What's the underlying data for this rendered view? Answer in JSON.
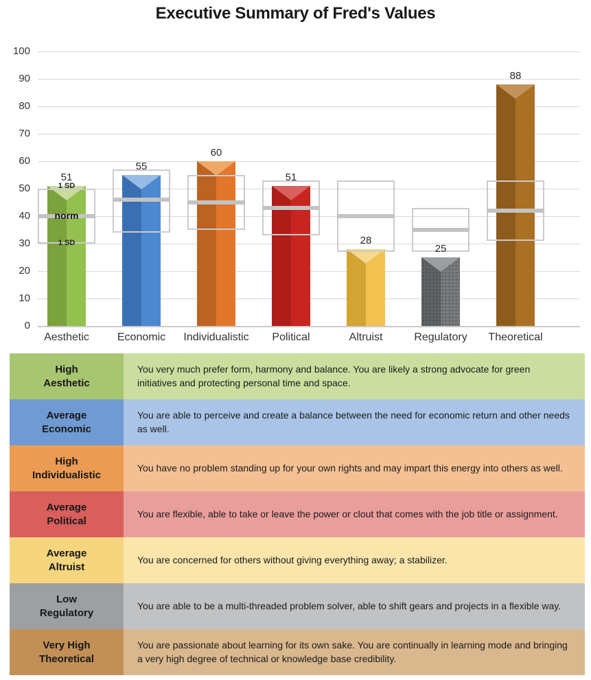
{
  "chart_data": {
    "type": "bar",
    "title": "Executive Summary of Fred's Values",
    "xlabel": "",
    "ylabel": "",
    "ylim": [
      0,
      100
    ],
    "grid": true,
    "yticks": [
      0,
      10,
      20,
      30,
      40,
      50,
      60,
      70,
      80,
      90,
      100
    ],
    "categories": [
      "Aesthetic",
      "Economic",
      "Individualistic",
      "Political",
      "Altruist",
      "Regulatory",
      "Theoretical"
    ],
    "values": [
      51,
      55,
      60,
      51,
      28,
      25,
      88
    ],
    "norms": [
      {
        "category": "Aesthetic",
        "norm": 40,
        "sd_low": 30,
        "sd_high": 50
      },
      {
        "category": "Economic",
        "norm": 46,
        "sd_low": 34,
        "sd_high": 57
      },
      {
        "category": "Individualistic",
        "norm": 45,
        "sd_low": 35,
        "sd_high": 55
      },
      {
        "category": "Political",
        "norm": 43,
        "sd_low": 33,
        "sd_high": 53
      },
      {
        "category": "Altruist",
        "norm": 40,
        "sd_low": 27,
        "sd_high": 53
      },
      {
        "category": "Regulatory",
        "norm": 35,
        "sd_low": 27,
        "sd_high": 43
      },
      {
        "category": "Theoretical",
        "norm": 42,
        "sd_low": 31,
        "sd_high": 53
      }
    ],
    "annotations": {
      "plus_sd": "1 SD",
      "norm": "norm",
      "minus_sd": "1 SD"
    },
    "bar_colors": [
      {
        "left": "#7ba23c",
        "right": "#93c04f",
        "top": "#c8db9b",
        "dotted": false
      },
      {
        "left": "#3a6fb3",
        "right": "#4c88d0",
        "top": "#97bbe5",
        "dotted": false
      },
      {
        "left": "#bd6322",
        "right": "#e2772b",
        "top": "#efa966",
        "dotted": false
      },
      {
        "left": "#ae1d18",
        "right": "#c92520",
        "top": "#d8615d",
        "dotted": false
      },
      {
        "left": "#d2a434",
        "right": "#f1c24f",
        "top": "#f6d98e",
        "dotted": false
      },
      {
        "left": "#5e6266",
        "right": "#77797b",
        "top": "#9b9ea0",
        "dotted": true
      },
      {
        "left": "#8d5b1b",
        "right": "#aa7023",
        "top": "#c2935a",
        "dotted": false
      }
    ]
  },
  "table": {
    "rows": [
      {
        "rating": "High",
        "trait": "Aesthetic",
        "description": "You very much prefer form, harmony and balance. You are likely a strong advocate for green initiatives and protecting personal time and space.",
        "label_bg": "#a8c671",
        "body_bg": "#cbde9f"
      },
      {
        "rating": "Average",
        "trait": "Economic",
        "description": "You are able to perceive and create a balance between the need for economic return and other needs as well.",
        "label_bg": "#6f9ad3",
        "body_bg": "#aac4e7"
      },
      {
        "rating": "High",
        "trait": "Individualistic",
        "description": "You have no problem standing up for your own rights and may impart this energy into others as well.",
        "label_bg": "#eb9b54",
        "body_bg": "#f4c093"
      },
      {
        "rating": "Average",
        "trait": "Political",
        "description": "You are flexible, able to take or leave the power or clout that comes with the job title or assignment.",
        "label_bg": "#d95f5c",
        "body_bg": "#ea9e9b"
      },
      {
        "rating": "Average",
        "trait": "Altruist",
        "description": "You are concerned for others without giving everything away; a stabilizer.",
        "label_bg": "#f6d57f",
        "body_bg": "#fae5ab"
      },
      {
        "rating": "Low",
        "trait": "Regulatory",
        "description": "You are able to be a multi-threaded problem solver, able to shift gears and projects in a flexible way.",
        "label_bg": "#9da0a2",
        "body_bg": "#c1c2c4"
      },
      {
        "rating": "Very High",
        "trait": "Theoretical",
        "description": "You are passionate about learning for its own sake. You are continually in learning mode and bringing a very high degree of technical or knowledge base credibility.",
        "label_bg": "#c29057",
        "body_bg": "#dab88e"
      }
    ]
  }
}
